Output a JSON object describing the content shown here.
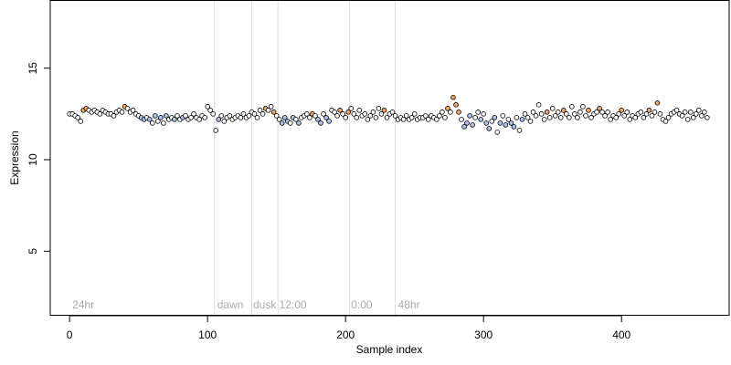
{
  "chart_data": {
    "type": "scatter",
    "title": "",
    "xlabel": "Sample index",
    "ylabel": "Expression",
    "xlim": [
      -14,
      478
    ],
    "ylim": [
      1.5,
      18.7
    ],
    "x_ticks": [
      0,
      100,
      200,
      300,
      400
    ],
    "y_ticks": [
      5,
      10,
      15
    ],
    "grid": false,
    "legend": "none",
    "colors": {
      "orange": "#f4a460",
      "blue": "#aac4ee",
      "white": "#ffffff",
      "divider": "#dddddd",
      "group_label": "#aaaaaa"
    },
    "dividers": [
      105,
      132,
      151,
      203,
      236
    ],
    "group_labels": [
      {
        "label": "24hr",
        "x": 2
      },
      {
        "label": "dawn",
        "x": 107
      },
      {
        "label": "dusk",
        "x": 133
      },
      {
        "label": "12:00",
        "x": 152
      },
      {
        "label": "0:00",
        "x": 204
      },
      {
        "label": "48hr",
        "x": 238
      }
    ],
    "points": [
      [
        0,
        12.5,
        "w"
      ],
      [
        2,
        12.5,
        "w"
      ],
      [
        4,
        12.4,
        "w"
      ],
      [
        6,
        12.3,
        "w"
      ],
      [
        8,
        12.1,
        "w"
      ],
      [
        10,
        12.7,
        "o"
      ],
      [
        12,
        12.8,
        "o"
      ],
      [
        14,
        12.7,
        "w"
      ],
      [
        16,
        12.6,
        "w"
      ],
      [
        18,
        12.7,
        "w"
      ],
      [
        20,
        12.6,
        "w"
      ],
      [
        22,
        12.5,
        "w"
      ],
      [
        24,
        12.7,
        "w"
      ],
      [
        26,
        12.6,
        "w"
      ],
      [
        28,
        12.5,
        "w"
      ],
      [
        30,
        12.5,
        "w"
      ],
      [
        32,
        12.4,
        "w"
      ],
      [
        34,
        12.6,
        "w"
      ],
      [
        36,
        12.7,
        "w"
      ],
      [
        38,
        12.6,
        "w"
      ],
      [
        40,
        12.9,
        "o"
      ],
      [
        42,
        12.8,
        "w"
      ],
      [
        44,
        12.6,
        "w"
      ],
      [
        46,
        12.7,
        "w"
      ],
      [
        48,
        12.5,
        "w"
      ],
      [
        50,
        12.4,
        "w"
      ],
      [
        52,
        12.3,
        "b"
      ],
      [
        54,
        12.2,
        "b"
      ],
      [
        56,
        12.3,
        "w"
      ],
      [
        58,
        12.2,
        "b"
      ],
      [
        60,
        12.0,
        "w"
      ],
      [
        62,
        12.4,
        "b"
      ],
      [
        64,
        12.1,
        "w"
      ],
      [
        66,
        12.3,
        "b"
      ],
      [
        68,
        12.0,
        "w"
      ],
      [
        70,
        12.4,
        "b"
      ],
      [
        72,
        12.2,
        "w"
      ],
      [
        74,
        12.3,
        "w"
      ],
      [
        76,
        12.2,
        "b"
      ],
      [
        78,
        12.4,
        "w"
      ],
      [
        80,
        12.2,
        "w"
      ],
      [
        82,
        12.3,
        "b"
      ],
      [
        84,
        12.4,
        "w"
      ],
      [
        86,
        12.2,
        "w"
      ],
      [
        88,
        12.3,
        "w"
      ],
      [
        90,
        12.5,
        "w"
      ],
      [
        92,
        12.3,
        "w"
      ],
      [
        94,
        12.2,
        "w"
      ],
      [
        96,
        12.4,
        "w"
      ],
      [
        98,
        12.3,
        "w"
      ],
      [
        100,
        12.9,
        "w"
      ],
      [
        102,
        12.7,
        "w"
      ],
      [
        104,
        12.5,
        "w"
      ],
      [
        106,
        11.6,
        "w"
      ],
      [
        108,
        12.2,
        "b"
      ],
      [
        110,
        12.4,
        "w"
      ],
      [
        112,
        12.1,
        "w"
      ],
      [
        114,
        12.3,
        "w"
      ],
      [
        116,
        12.4,
        "w"
      ],
      [
        118,
        12.2,
        "w"
      ],
      [
        120,
        12.3,
        "w"
      ],
      [
        122,
        12.4,
        "w"
      ],
      [
        124,
        12.3,
        "w"
      ],
      [
        126,
        12.5,
        "w"
      ],
      [
        128,
        12.3,
        "w"
      ],
      [
        130,
        12.4,
        "w"
      ],
      [
        132,
        12.6,
        "w"
      ],
      [
        134,
        12.5,
        "w"
      ],
      [
        136,
        12.3,
        "w"
      ],
      [
        138,
        12.7,
        "w"
      ],
      [
        140,
        12.5,
        "w"
      ],
      [
        142,
        12.8,
        "o"
      ],
      [
        144,
        12.7,
        "w"
      ],
      [
        146,
        12.9,
        "w"
      ],
      [
        148,
        12.6,
        "o"
      ],
      [
        150,
        12.4,
        "w"
      ],
      [
        152,
        12.2,
        "w"
      ],
      [
        154,
        12.0,
        "b"
      ],
      [
        156,
        12.3,
        "b"
      ],
      [
        158,
        12.1,
        "b"
      ],
      [
        160,
        12.0,
        "w"
      ],
      [
        162,
        12.3,
        "b"
      ],
      [
        164,
        12.2,
        "w"
      ],
      [
        166,
        12.0,
        "b"
      ],
      [
        168,
        12.3,
        "w"
      ],
      [
        170,
        12.4,
        "w"
      ],
      [
        172,
        12.5,
        "w"
      ],
      [
        174,
        12.3,
        "w"
      ],
      [
        176,
        12.5,
        "o"
      ],
      [
        178,
        12.4,
        "w"
      ],
      [
        180,
        12.2,
        "b"
      ],
      [
        182,
        12.0,
        "b"
      ],
      [
        184,
        12.5,
        "w"
      ],
      [
        186,
        12.3,
        "b"
      ],
      [
        188,
        12.1,
        "b"
      ],
      [
        190,
        12.7,
        "w"
      ],
      [
        192,
        12.6,
        "w"
      ],
      [
        194,
        12.4,
        "w"
      ],
      [
        196,
        12.7,
        "o"
      ],
      [
        198,
        12.5,
        "w"
      ],
      [
        200,
        12.3,
        "w"
      ],
      [
        202,
        12.6,
        "o"
      ],
      [
        204,
        12.8,
        "w"
      ],
      [
        206,
        12.5,
        "w"
      ],
      [
        208,
        12.3,
        "w"
      ],
      [
        210,
        12.7,
        "w"
      ],
      [
        212,
        12.4,
        "w"
      ],
      [
        214,
        12.5,
        "w"
      ],
      [
        216,
        12.2,
        "w"
      ],
      [
        218,
        12.4,
        "w"
      ],
      [
        220,
        12.6,
        "w"
      ],
      [
        222,
        12.3,
        "w"
      ],
      [
        224,
        12.8,
        "w"
      ],
      [
        226,
        12.5,
        "w"
      ],
      [
        228,
        12.7,
        "o"
      ],
      [
        230,
        12.3,
        "w"
      ],
      [
        232,
        12.5,
        "w"
      ],
      [
        234,
        12.6,
        "w"
      ],
      [
        236,
        12.4,
        "w"
      ],
      [
        238,
        12.2,
        "w"
      ],
      [
        240,
        12.3,
        "w"
      ],
      [
        242,
        12.2,
        "w"
      ],
      [
        244,
        12.4,
        "w"
      ],
      [
        246,
        12.2,
        "w"
      ],
      [
        248,
        12.3,
        "w"
      ],
      [
        250,
        12.5,
        "w"
      ],
      [
        252,
        12.2,
        "w"
      ],
      [
        254,
        12.3,
        "w"
      ],
      [
        256,
        12.3,
        "w"
      ],
      [
        258,
        12.4,
        "w"
      ],
      [
        260,
        12.2,
        "w"
      ],
      [
        262,
        12.4,
        "w"
      ],
      [
        264,
        12.3,
        "w"
      ],
      [
        266,
        12.2,
        "w"
      ],
      [
        268,
        12.4,
        "w"
      ],
      [
        270,
        12.6,
        "w"
      ],
      [
        272,
        12.3,
        "w"
      ],
      [
        274,
        12.8,
        "o"
      ],
      [
        276,
        12.6,
        "w"
      ],
      [
        278,
        13.4,
        "o"
      ],
      [
        280,
        13.0,
        "o"
      ],
      [
        282,
        12.6,
        "o"
      ],
      [
        284,
        12.2,
        "w"
      ],
      [
        286,
        11.8,
        "b"
      ],
      [
        288,
        12.0,
        "b"
      ],
      [
        290,
        12.4,
        "b"
      ],
      [
        292,
        11.9,
        "b"
      ],
      [
        294,
        12.3,
        "w"
      ],
      [
        296,
        12.6,
        "w"
      ],
      [
        298,
        12.2,
        "b"
      ],
      [
        300,
        12.5,
        "w"
      ],
      [
        302,
        12.0,
        "b"
      ],
      [
        304,
        11.7,
        "b"
      ],
      [
        306,
        12.1,
        "w"
      ],
      [
        308,
        12.3,
        "b"
      ],
      [
        310,
        11.5,
        "w"
      ],
      [
        312,
        12.0,
        "b"
      ],
      [
        314,
        12.4,
        "w"
      ],
      [
        316,
        11.9,
        "b"
      ],
      [
        318,
        12.2,
        "w"
      ],
      [
        320,
        12.0,
        "b"
      ],
      [
        322,
        11.8,
        "b"
      ],
      [
        324,
        12.3,
        "w"
      ],
      [
        326,
        11.6,
        "w"
      ],
      [
        328,
        12.2,
        "b"
      ],
      [
        330,
        12.5,
        "w"
      ],
      [
        332,
        12.3,
        "w"
      ],
      [
        334,
        12.1,
        "w"
      ],
      [
        336,
        12.6,
        "w"
      ],
      [
        338,
        12.4,
        "w"
      ],
      [
        340,
        13.0,
        "w"
      ],
      [
        342,
        12.5,
        "w"
      ],
      [
        344,
        12.2,
        "w"
      ],
      [
        346,
        12.6,
        "o"
      ],
      [
        348,
        12.3,
        "w"
      ],
      [
        350,
        12.8,
        "w"
      ],
      [
        352,
        12.4,
        "w"
      ],
      [
        354,
        12.6,
        "w"
      ],
      [
        356,
        12.3,
        "w"
      ],
      [
        358,
        12.7,
        "o"
      ],
      [
        360,
        12.5,
        "w"
      ],
      [
        362,
        12.3,
        "w"
      ],
      [
        364,
        12.9,
        "w"
      ],
      [
        366,
        12.5,
        "w"
      ],
      [
        368,
        12.3,
        "w"
      ],
      [
        370,
        12.6,
        "w"
      ],
      [
        372,
        12.9,
        "w"
      ],
      [
        374,
        12.4,
        "w"
      ],
      [
        376,
        12.7,
        "o"
      ],
      [
        378,
        12.3,
        "w"
      ],
      [
        380,
        12.5,
        "w"
      ],
      [
        382,
        12.6,
        "w"
      ],
      [
        384,
        12.8,
        "o"
      ],
      [
        386,
        12.6,
        "w"
      ],
      [
        388,
        12.4,
        "w"
      ],
      [
        390,
        12.6,
        "w"
      ],
      [
        392,
        12.2,
        "w"
      ],
      [
        394,
        12.4,
        "w"
      ],
      [
        396,
        12.3,
        "w"
      ],
      [
        398,
        12.5,
        "w"
      ],
      [
        400,
        12.7,
        "o"
      ],
      [
        402,
        12.4,
        "w"
      ],
      [
        404,
        12.6,
        "w"
      ],
      [
        406,
        12.2,
        "w"
      ],
      [
        408,
        12.4,
        "w"
      ],
      [
        410,
        12.3,
        "w"
      ],
      [
        412,
        12.5,
        "w"
      ],
      [
        414,
        12.6,
        "w"
      ],
      [
        416,
        12.3,
        "w"
      ],
      [
        418,
        12.5,
        "w"
      ],
      [
        420,
        12.7,
        "o"
      ],
      [
        422,
        12.4,
        "w"
      ],
      [
        424,
        12.6,
        "w"
      ],
      [
        426,
        13.1,
        "o"
      ],
      [
        428,
        12.5,
        "w"
      ],
      [
        430,
        12.2,
        "w"
      ],
      [
        432,
        12.1,
        "w"
      ],
      [
        434,
        12.3,
        "w"
      ],
      [
        436,
        12.5,
        "w"
      ],
      [
        438,
        12.6,
        "w"
      ],
      [
        440,
        12.7,
        "w"
      ],
      [
        442,
        12.5,
        "w"
      ],
      [
        444,
        12.4,
        "w"
      ],
      [
        446,
        12.6,
        "w"
      ],
      [
        448,
        12.2,
        "w"
      ],
      [
        450,
        12.6,
        "w"
      ],
      [
        452,
        12.3,
        "w"
      ],
      [
        454,
        12.5,
        "w"
      ],
      [
        456,
        12.7,
        "w"
      ],
      [
        458,
        12.4,
        "w"
      ],
      [
        460,
        12.6,
        "w"
      ],
      [
        462,
        12.3,
        "w"
      ]
    ]
  }
}
